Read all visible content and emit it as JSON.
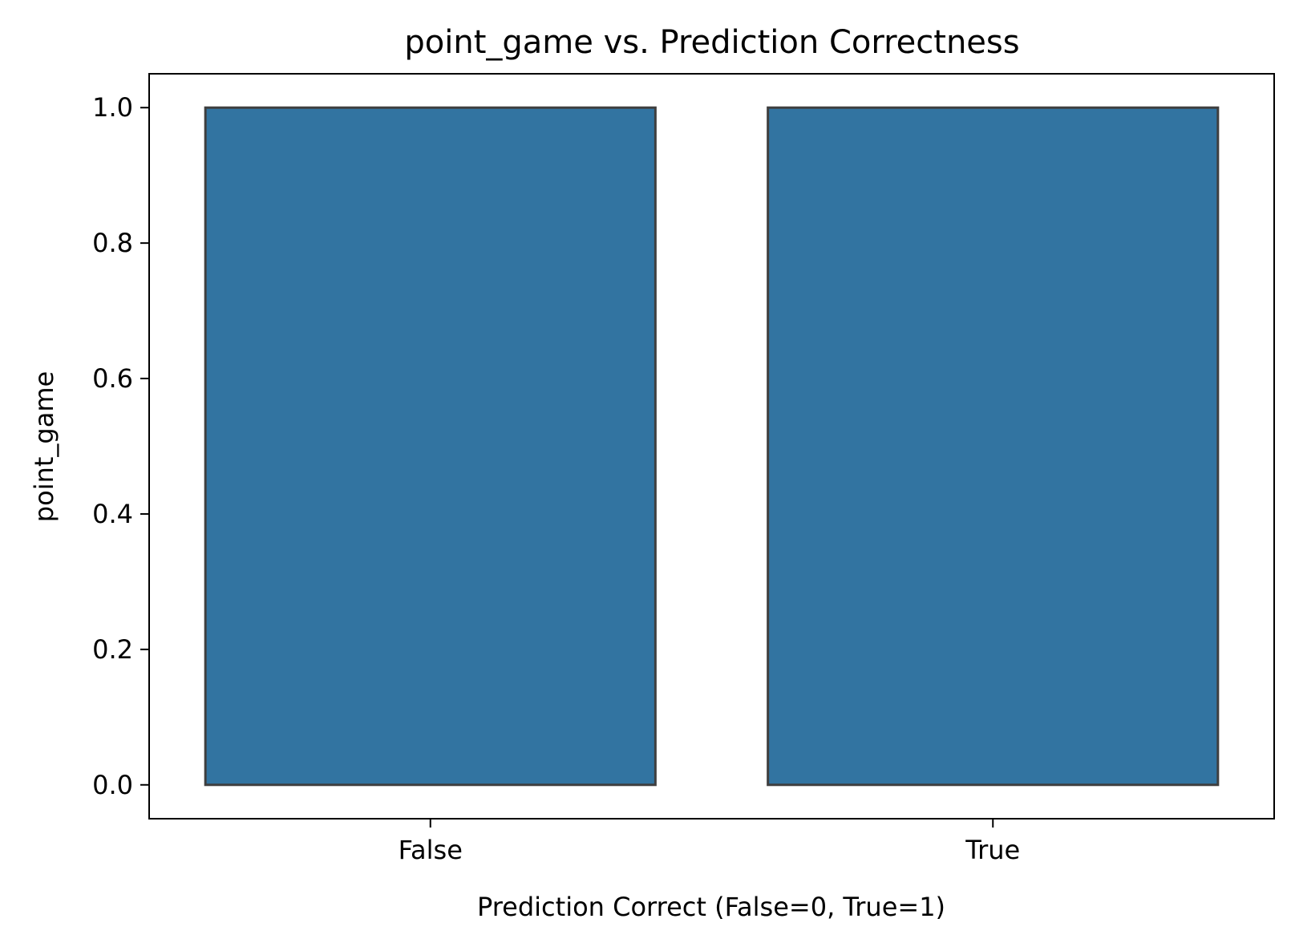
{
  "chart_data": {
    "type": "bar",
    "title": "point_game vs. Prediction Correctness",
    "xlabel": "Prediction Correct (False=0, True=1)",
    "ylabel": "point_game",
    "categories": [
      "False",
      "True"
    ],
    "values": [
      1.0,
      1.0
    ],
    "ylim": [
      -0.05,
      1.05
    ],
    "yticks": [
      0.0,
      0.2,
      0.4,
      0.6,
      0.8,
      1.0
    ],
    "ytick_labels": [
      "0.0",
      "0.2",
      "0.4",
      "0.6",
      "0.8",
      "1.0"
    ],
    "grid": false,
    "bar_color": "#3274a1",
    "bar_edge_color": "#3f3f3f"
  }
}
